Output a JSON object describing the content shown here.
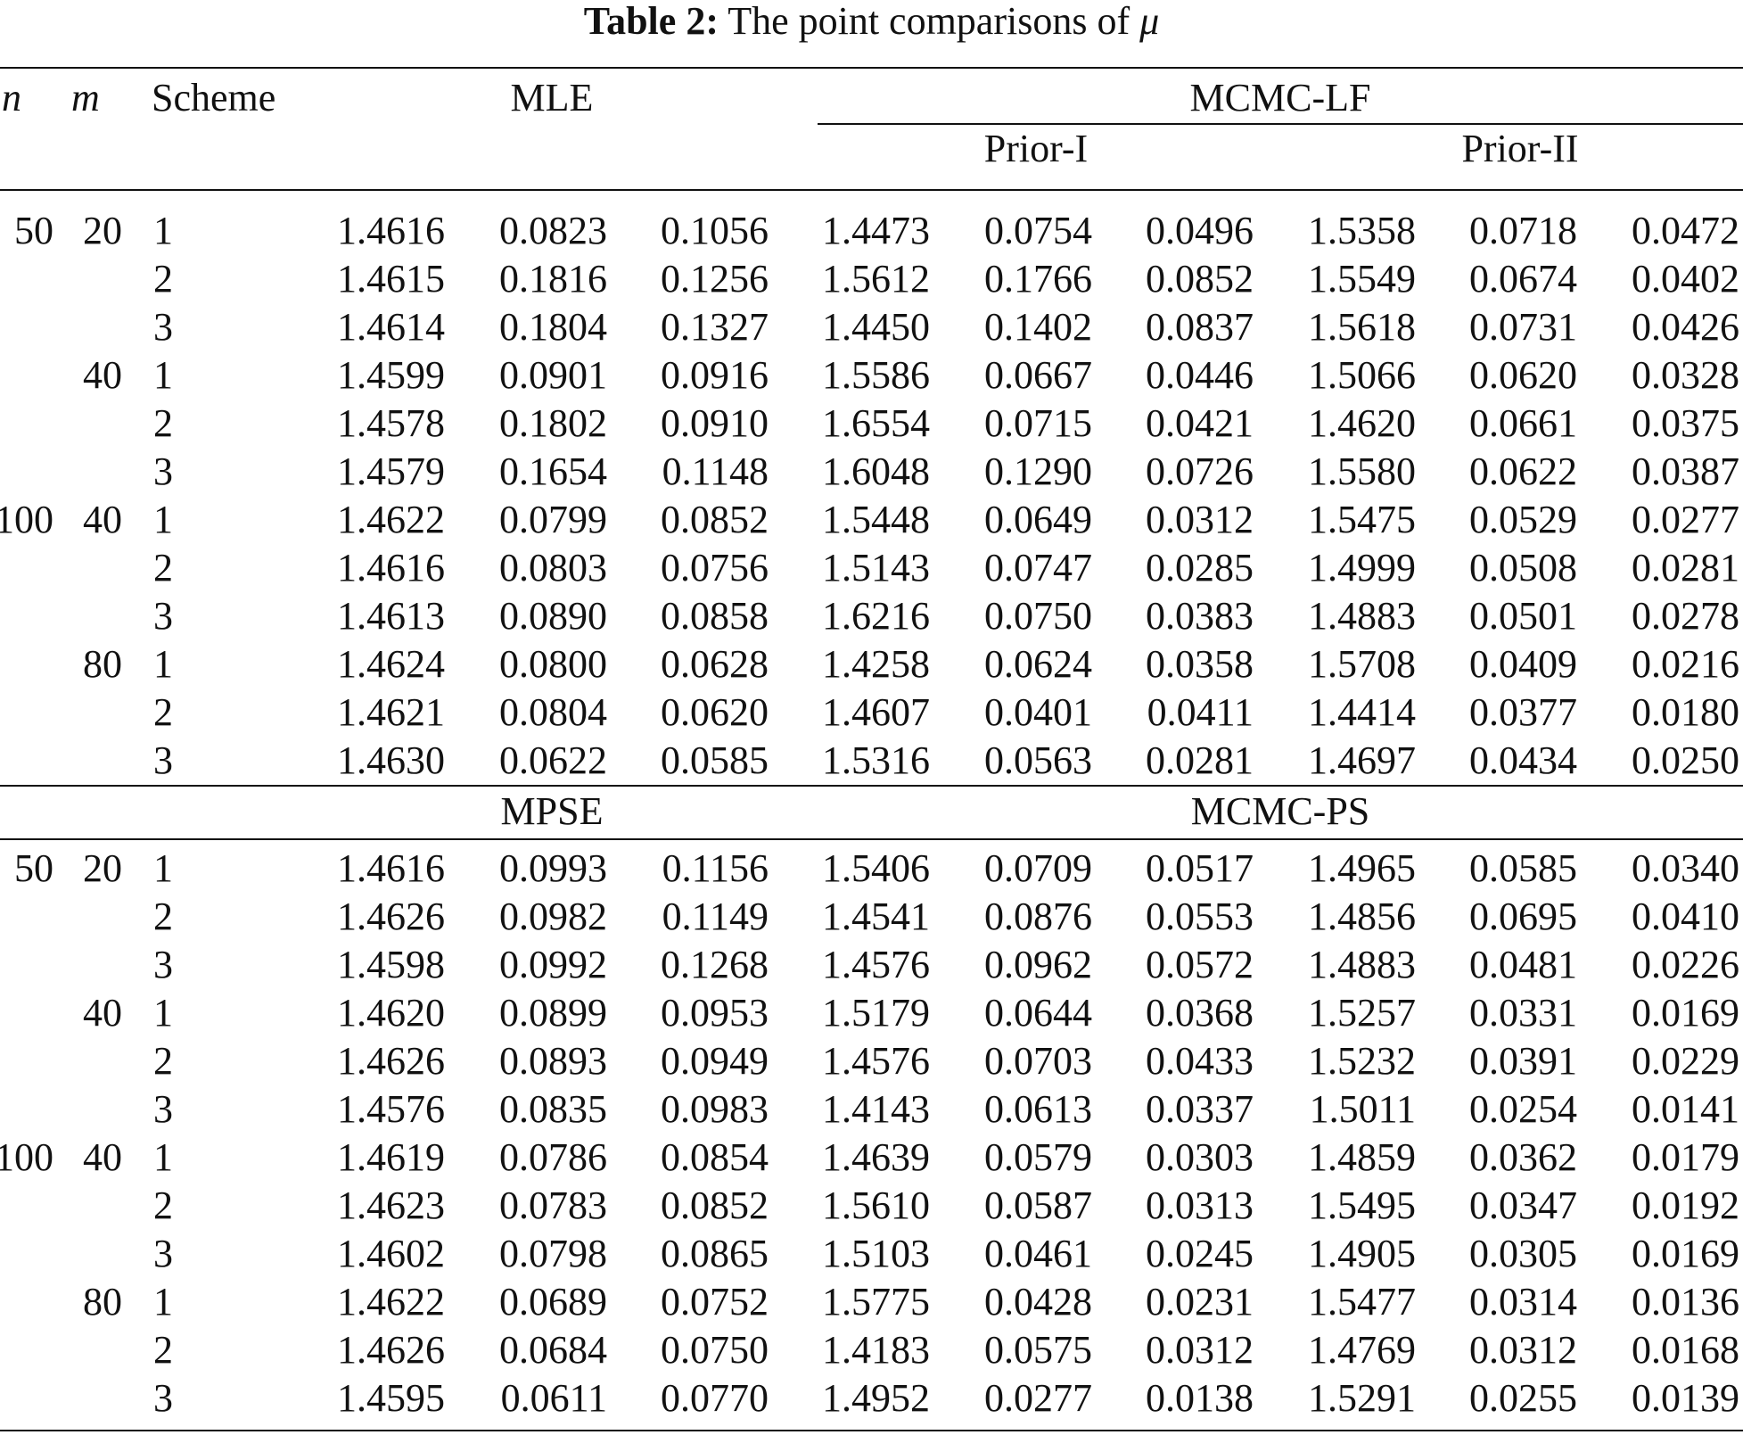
{
  "caption": {
    "label": "Table 2:",
    "text": "The point comparisons of",
    "symbol": "μ"
  },
  "header": {
    "n": "n",
    "m": "m",
    "scheme": "Scheme",
    "group1_left": "MLE",
    "group1_right": "MCMC-LF",
    "prior1": "Prior-I",
    "prior2": "Prior-II",
    "group2_left": "MPSE",
    "group2_right": "MCMC-PS"
  },
  "panel1_rows": [
    {
      "n": "50",
      "m": "20",
      "scheme": "1",
      "values": [
        "1.4616",
        "0.0823",
        "0.1056",
        "1.4473",
        "0.0754",
        "0.0496",
        "1.5358",
        "0.0718",
        "0.0472"
      ]
    },
    {
      "n": "",
      "m": "",
      "scheme": "2",
      "values": [
        "1.4615",
        "0.1816",
        "0.1256",
        "1.5612",
        "0.1766",
        "0.0852",
        "1.5549",
        "0.0674",
        "0.0402"
      ]
    },
    {
      "n": "",
      "m": "",
      "scheme": "3",
      "values": [
        "1.4614",
        "0.1804",
        "0.1327",
        "1.4450",
        "0.1402",
        "0.0837",
        "1.5618",
        "0.0731",
        "0.0426"
      ]
    },
    {
      "n": "",
      "m": "40",
      "scheme": "1",
      "values": [
        "1.4599",
        "0.0901",
        "0.0916",
        "1.5586",
        "0.0667",
        "0.0446",
        "1.5066",
        "0.0620",
        "0.0328"
      ]
    },
    {
      "n": "",
      "m": "",
      "scheme": "2",
      "values": [
        "1.4578",
        "0.1802",
        "0.0910",
        "1.6554",
        "0.0715",
        "0.0421",
        "1.4620",
        "0.0661",
        "0.0375"
      ]
    },
    {
      "n": "",
      "m": "",
      "scheme": "3",
      "values": [
        "1.4579",
        "0.1654",
        "0.1148",
        "1.6048",
        "0.1290",
        "0.0726",
        "1.5580",
        "0.0622",
        "0.0387"
      ]
    },
    {
      "n": "100",
      "m": "40",
      "scheme": "1",
      "values": [
        "1.4622",
        "0.0799",
        "0.0852",
        "1.5448",
        "0.0649",
        "0.0312",
        "1.5475",
        "0.0529",
        "0.0277"
      ]
    },
    {
      "n": "",
      "m": "",
      "scheme": "2",
      "values": [
        "1.4616",
        "0.0803",
        "0.0756",
        "1.5143",
        "0.0747",
        "0.0285",
        "1.4999",
        "0.0508",
        "0.0281"
      ]
    },
    {
      "n": "",
      "m": "",
      "scheme": "3",
      "values": [
        "1.4613",
        "0.0890",
        "0.0858",
        "1.6216",
        "0.0750",
        "0.0383",
        "1.4883",
        "0.0501",
        "0.0278"
      ]
    },
    {
      "n": "",
      "m": "80",
      "scheme": "1",
      "values": [
        "1.4624",
        "0.0800",
        "0.0628",
        "1.4258",
        "0.0624",
        "0.0358",
        "1.5708",
        "0.0409",
        "0.0216"
      ]
    },
    {
      "n": "",
      "m": "",
      "scheme": "2",
      "values": [
        "1.4621",
        "0.0804",
        "0.0620",
        "1.4607",
        "0.0401",
        "0.0411",
        "1.4414",
        "0.0377",
        "0.0180"
      ]
    },
    {
      "n": "",
      "m": "",
      "scheme": "3",
      "values": [
        "1.4630",
        "0.0622",
        "0.0585",
        "1.5316",
        "0.0563",
        "0.0281",
        "1.4697",
        "0.0434",
        "0.0250"
      ]
    }
  ],
  "panel2_rows": [
    {
      "n": "50",
      "m": "20",
      "scheme": "1",
      "values": [
        "1.4616",
        "0.0993",
        "0.1156",
        "1.5406",
        "0.0709",
        "0.0517",
        "1.4965",
        "0.0585",
        "0.0340"
      ]
    },
    {
      "n": "",
      "m": "",
      "scheme": "2",
      "values": [
        "1.4626",
        "0.0982",
        "0.1149",
        "1.4541",
        "0.0876",
        "0.0553",
        "1.4856",
        "0.0695",
        "0.0410"
      ]
    },
    {
      "n": "",
      "m": "",
      "scheme": "3",
      "values": [
        "1.4598",
        "0.0992",
        "0.1268",
        "1.4576",
        "0.0962",
        "0.0572",
        "1.4883",
        "0.0481",
        "0.0226"
      ]
    },
    {
      "n": "",
      "m": "40",
      "scheme": "1",
      "values": [
        "1.4620",
        "0.0899",
        "0.0953",
        "1.5179",
        "0.0644",
        "0.0368",
        "1.5257",
        "0.0331",
        "0.0169"
      ]
    },
    {
      "n": "",
      "m": "",
      "scheme": "2",
      "values": [
        "1.4626",
        "0.0893",
        "0.0949",
        "1.4576",
        "0.0703",
        "0.0433",
        "1.5232",
        "0.0391",
        "0.0229"
      ]
    },
    {
      "n": "",
      "m": "",
      "scheme": "3",
      "values": [
        "1.4576",
        "0.0835",
        "0.0983",
        "1.4143",
        "0.0613",
        "0.0337",
        "1.5011",
        "0.0254",
        "0.0141"
      ]
    },
    {
      "n": "100",
      "m": "40",
      "scheme": "1",
      "values": [
        "1.4619",
        "0.0786",
        "0.0854",
        "1.4639",
        "0.0579",
        "0.0303",
        "1.4859",
        "0.0362",
        "0.0179"
      ]
    },
    {
      "n": "",
      "m": "",
      "scheme": "2",
      "values": [
        "1.4623",
        "0.0783",
        "0.0852",
        "1.5610",
        "0.0587",
        "0.0313",
        "1.5495",
        "0.0347",
        "0.0192"
      ]
    },
    {
      "n": "",
      "m": "",
      "scheme": "3",
      "values": [
        "1.4602",
        "0.0798",
        "0.0865",
        "1.5103",
        "0.0461",
        "0.0245",
        "1.4905",
        "0.0305",
        "0.0169"
      ]
    },
    {
      "n": "",
      "m": "80",
      "scheme": "1",
      "values": [
        "1.4622",
        "0.0689",
        "0.0752",
        "1.5775",
        "0.0428",
        "0.0231",
        "1.5477",
        "0.0314",
        "0.0136"
      ]
    },
    {
      "n": "",
      "m": "",
      "scheme": "2",
      "values": [
        "1.4626",
        "0.0684",
        "0.0750",
        "1.4183",
        "0.0575",
        "0.0312",
        "1.4769",
        "0.0312",
        "0.0168"
      ]
    },
    {
      "n": "",
      "m": "",
      "scheme": "3",
      "values": [
        "1.4595",
        "0.0611",
        "0.0770",
        "1.4952",
        "0.0277",
        "0.0138",
        "1.5291",
        "0.0255",
        "0.0139"
      ]
    }
  ]
}
